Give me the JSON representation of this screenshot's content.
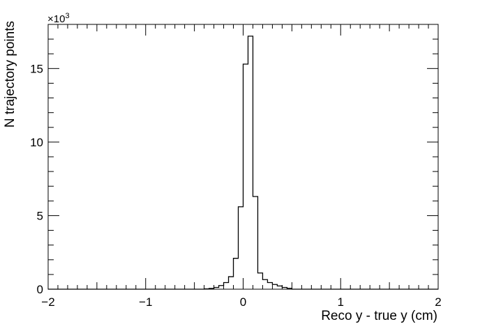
{
  "chart_data": {
    "type": "histogram",
    "title": "",
    "xlabel": "Reco y - true y (cm)",
    "ylabel": "N trajectory points",
    "y_multiplier_base": "×10",
    "y_multiplier_exp": "3",
    "xlim": [
      -2,
      2
    ],
    "ylim": [
      0,
      18
    ],
    "x_ticks": [
      -2,
      -1,
      0,
      1,
      2
    ],
    "x_tick_labels": [
      "−2",
      "−1",
      "0",
      "1",
      "2"
    ],
    "y_ticks": [
      0,
      5,
      10,
      15
    ],
    "y_tick_labels": [
      "0",
      "5",
      "10",
      "15"
    ],
    "grid": false,
    "legend": false,
    "bin_width": 0.05,
    "bins": [
      {
        "x0": -0.4,
        "x1": -0.35,
        "value": 0.02
      },
      {
        "x0": -0.35,
        "x1": -0.3,
        "value": 0.05
      },
      {
        "x0": -0.3,
        "x1": -0.25,
        "value": 0.12
      },
      {
        "x0": -0.25,
        "x1": -0.2,
        "value": 0.25
      },
      {
        "x0": -0.2,
        "x1": -0.15,
        "value": 0.45
      },
      {
        "x0": -0.15,
        "x1": -0.1,
        "value": 0.85
      },
      {
        "x0": -0.1,
        "x1": -0.05,
        "value": 2.1
      },
      {
        "x0": -0.05,
        "x1": 0.0,
        "value": 5.6
      },
      {
        "x0": 0.0,
        "x1": 0.05,
        "value": 15.3
      },
      {
        "x0": 0.05,
        "x1": 0.1,
        "value": 17.2
      },
      {
        "x0": 0.1,
        "x1": 0.15,
        "value": 6.3
      },
      {
        "x0": 0.15,
        "x1": 0.2,
        "value": 1.1
      },
      {
        "x0": 0.2,
        "x1": 0.25,
        "value": 0.65
      },
      {
        "x0": 0.25,
        "x1": 0.3,
        "value": 0.45
      },
      {
        "x0": 0.3,
        "x1": 0.35,
        "value": 0.32
      },
      {
        "x0": 0.35,
        "x1": 0.4,
        "value": 0.22
      },
      {
        "x0": 0.4,
        "x1": 0.45,
        "value": 0.12
      },
      {
        "x0": 0.45,
        "x1": 0.5,
        "value": 0.06
      }
    ],
    "colors": {
      "line": "#000000",
      "background": "#ffffff"
    }
  }
}
